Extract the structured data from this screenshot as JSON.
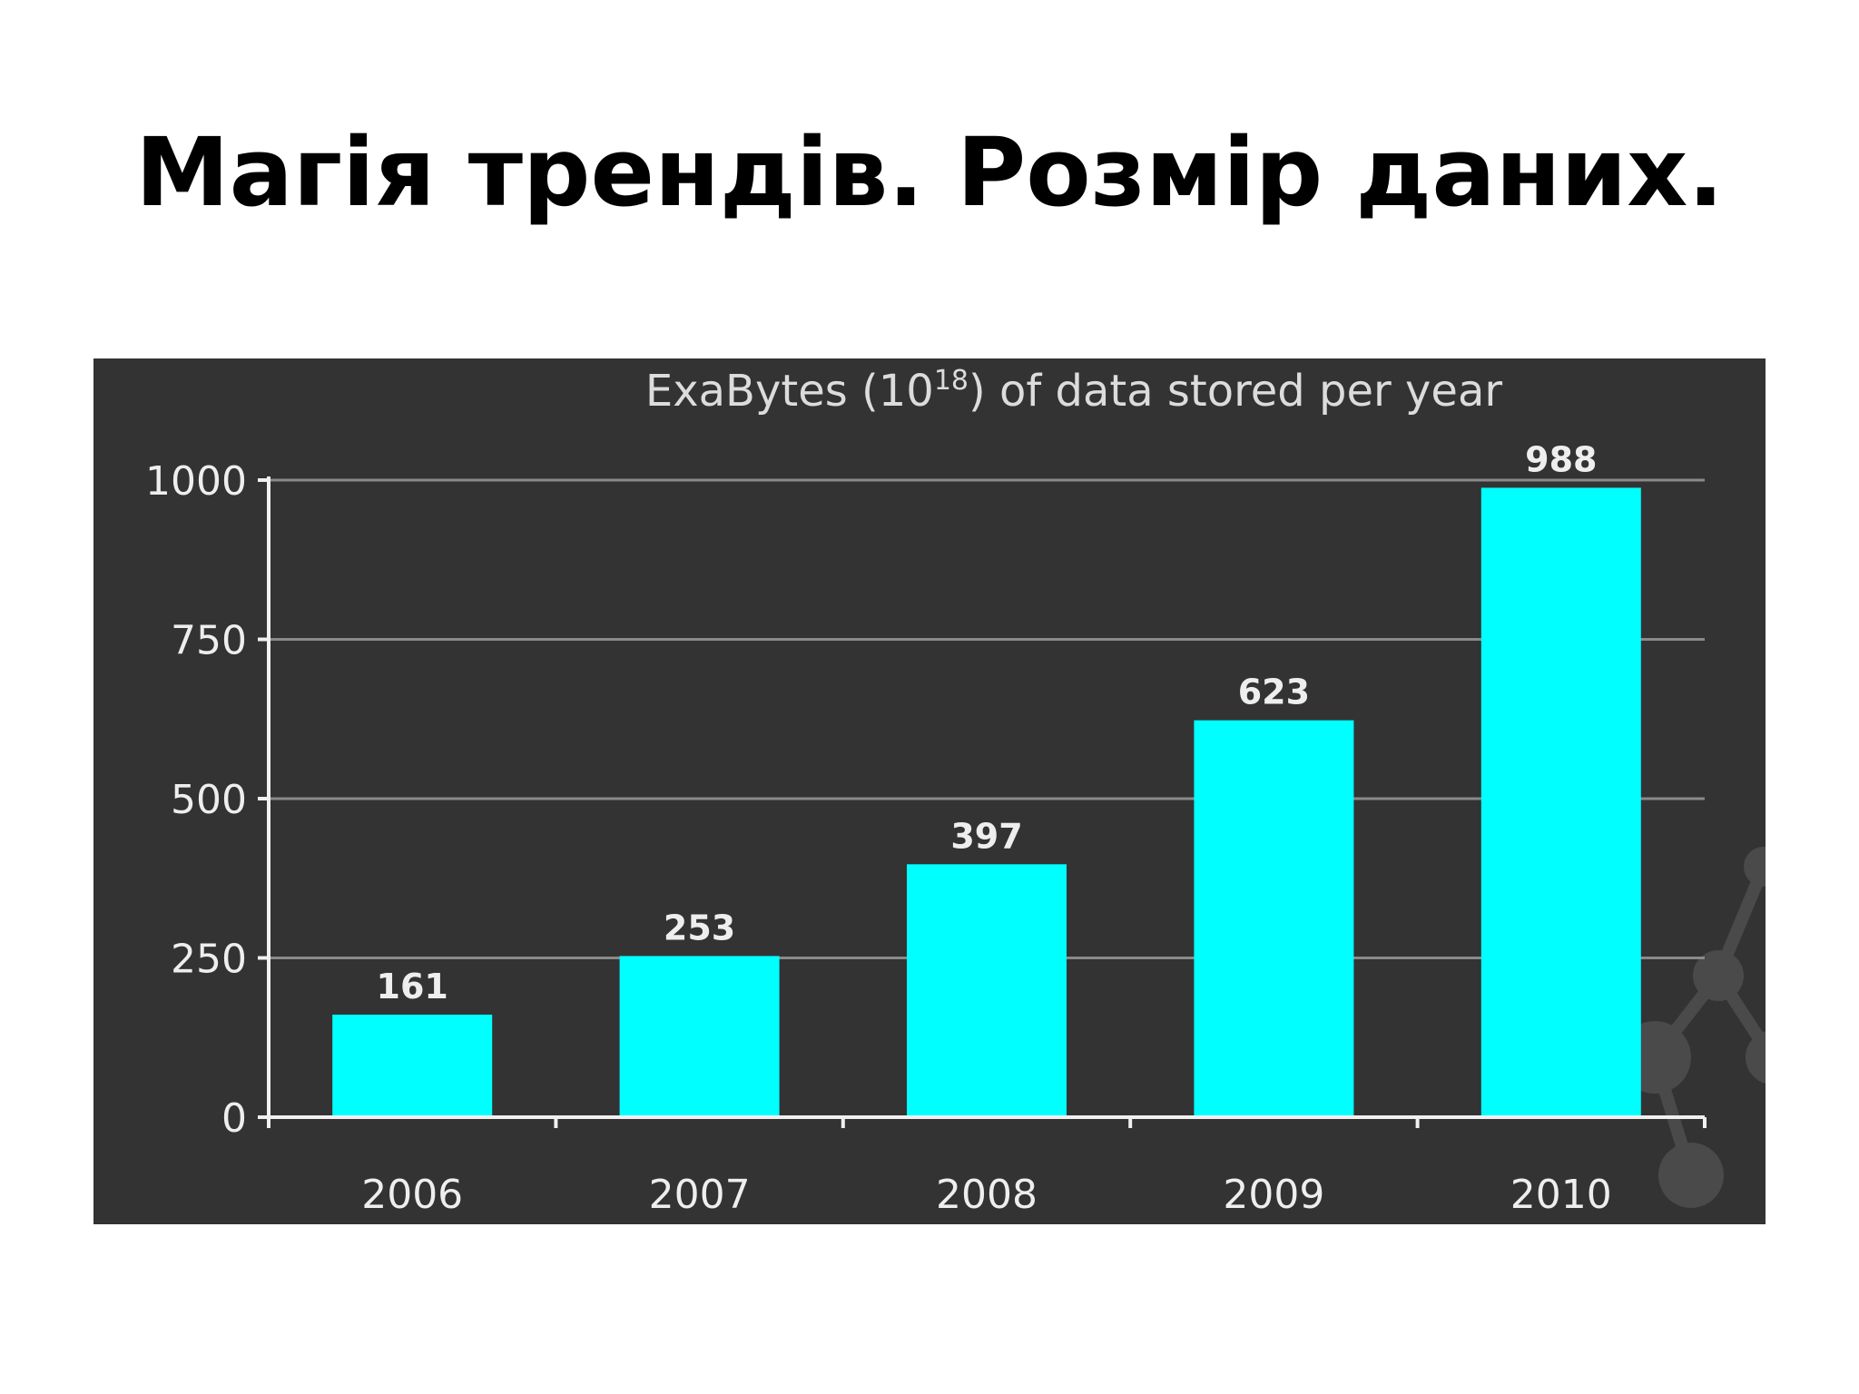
{
  "slide": {
    "title": "Магія трендів. Розмір даних."
  },
  "chart_data": {
    "type": "bar",
    "title_main": "ExaBytes (10",
    "title_sup": "18",
    "title_rest": ") of data stored per year",
    "categories": [
      "2006",
      "2007",
      "2008",
      "2009",
      "2010"
    ],
    "values": [
      161,
      253,
      397,
      623,
      988
    ],
    "ylim": [
      0,
      1000
    ],
    "yticks": [
      0,
      250,
      500,
      750,
      1000
    ],
    "grid": true,
    "legend": "none",
    "colors": {
      "bar": "#00ffff",
      "background": "#333333",
      "grid": "#8a8a8a",
      "axis": "#f0f0f0"
    }
  }
}
